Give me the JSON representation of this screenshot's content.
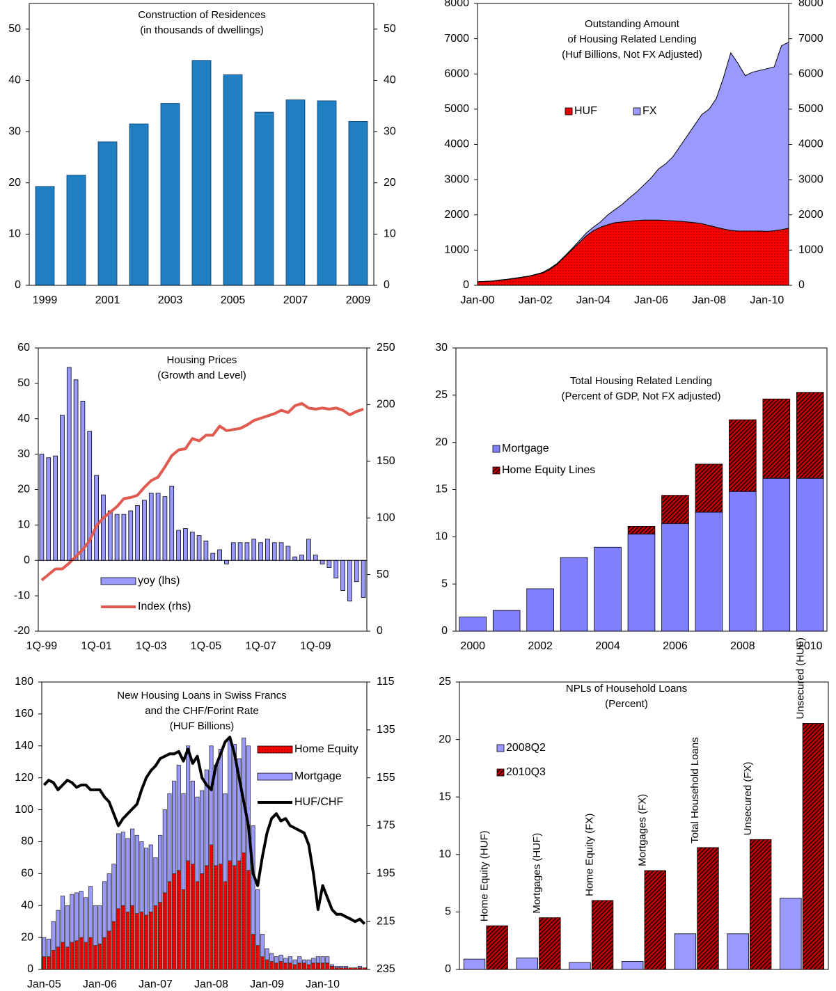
{
  "chart_data": [
    {
      "type": "bar",
      "title": [
        "Construction of Residences",
        "(in thousands of dwellings)"
      ],
      "categories": [
        "1999",
        null,
        "2001",
        null,
        "2003",
        null,
        "2005",
        null,
        "2007",
        null,
        "2009"
      ],
      "values": [
        19.3,
        21.5,
        28,
        31.5,
        35.5,
        43.9,
        41.1,
        33.8,
        36.2,
        36,
        32
      ],
      "color": "#1f7fc1",
      "ylim": [
        0,
        55
      ],
      "yticks": [
        0,
        10,
        20,
        30,
        40,
        50
      ],
      "y2lim": [
        0,
        55
      ],
      "y2ticks": [
        0,
        10,
        20,
        30,
        40,
        50
      ],
      "grid": false
    },
    {
      "type": "area",
      "title": [
        "Outstanding Amount",
        "of Housing Related Lending",
        "(Huf Billions, Not FX Adjusted)"
      ],
      "categories": [
        "Jan-00",
        null,
        null,
        null,
        null,
        null,
        null,
        null,
        "Jan-02",
        null,
        null,
        null,
        null,
        null,
        null,
        null,
        "Jan-04",
        null,
        null,
        null,
        null,
        null,
        null,
        null,
        "Jan-06",
        null,
        null,
        null,
        null,
        null,
        null,
        null,
        "Jan-08",
        null,
        null,
        null,
        null,
        null,
        null,
        null,
        "Jan-10",
        null,
        null,
        null
      ],
      "stacked": true,
      "series": [
        {
          "name": "HUF",
          "color": "#ff0000",
          "pattern": "dots",
          "values": [
            100,
            110,
            120,
            140,
            160,
            190,
            220,
            250,
            300,
            350,
            450,
            600,
            800,
            1000,
            1200,
            1400,
            1550,
            1650,
            1720,
            1780,
            1800,
            1820,
            1840,
            1850,
            1850,
            1850,
            1840,
            1830,
            1820,
            1800,
            1780,
            1750,
            1700,
            1650,
            1600,
            1560,
            1540,
            1540,
            1540,
            1540,
            1530,
            1550,
            1580,
            1620
          ]
        },
        {
          "name": "FX",
          "color": "#9999ff",
          "values": [
            0,
            0,
            5,
            10,
            10,
            10,
            10,
            10,
            10,
            20,
            30,
            20,
            20,
            30,
            50,
            80,
            100,
            150,
            280,
            370,
            500,
            660,
            810,
            1000,
            1200,
            1450,
            1610,
            1820,
            2130,
            2450,
            2770,
            3100,
            3300,
            3650,
            4300,
            5040,
            4760,
            4410,
            4510,
            4560,
            4620,
            4650,
            5220,
            5280
          ]
        }
      ],
      "ylim": [
        0,
        8000
      ],
      "yticks": [
        0,
        1000,
        2000,
        3000,
        4000,
        5000,
        6000,
        7000,
        8000
      ],
      "y2lim": [
        0,
        8000
      ],
      "y2ticks": [
        0,
        1000,
        2000,
        3000,
        4000,
        5000,
        6000,
        7000,
        8000
      ],
      "grid": false
    },
    {
      "type": "combo",
      "title": [
        "Housing Prices",
        "(Growth and Level)"
      ],
      "categories": [
        "1Q-99",
        null,
        null,
        null,
        null,
        null,
        null,
        null,
        "1Q-01",
        null,
        null,
        null,
        null,
        null,
        null,
        null,
        "1Q-03",
        null,
        null,
        null,
        null,
        null,
        null,
        null,
        "1Q-05",
        null,
        null,
        null,
        null,
        null,
        null,
        null,
        "1Q-07",
        null,
        null,
        null,
        null,
        null,
        null,
        null,
        "1Q-09",
        null,
        null,
        null,
        null,
        null,
        null,
        null
      ],
      "series": [
        {
          "name": "yoy (lhs)",
          "type": "bar",
          "color": "#9999ff",
          "values": [
            30,
            29,
            29.5,
            41,
            54.5,
            51,
            45,
            36.5,
            24,
            18.5,
            14,
            13,
            13,
            14,
            15.5,
            17,
            19,
            19,
            18,
            21,
            8.5,
            9,
            8,
            7,
            5.5,
            2,
            3,
            -1,
            5,
            5,
            5,
            6,
            5,
            6,
            5,
            5,
            4,
            1,
            1.5,
            6,
            1.5,
            -1,
            -2,
            -5,
            -8.5,
            -11.5,
            -6,
            -10.5
          ]
        },
        {
          "name": "Index (rhs)",
          "type": "line",
          "axis": "y2",
          "color": "#e05a4f",
          "values": [
            45,
            50,
            55,
            55,
            60,
            66,
            72,
            80,
            93,
            100,
            105,
            110,
            117,
            118,
            120,
            127,
            133,
            136,
            145,
            155,
            160,
            161,
            170,
            168,
            173,
            173,
            181,
            177,
            178,
            179,
            182,
            186,
            188,
            190,
            192,
            195,
            193,
            199,
            201,
            197,
            196,
            197,
            196,
            197,
            195,
            191,
            194,
            196
          ]
        }
      ],
      "ylim": [
        -20,
        60
      ],
      "yticks": [
        -20,
        -10,
        0,
        10,
        20,
        30,
        40,
        50,
        60
      ],
      "y2lim": [
        0,
        250
      ],
      "y2ticks": [
        0,
        50,
        100,
        150,
        200,
        250
      ],
      "grid": false
    },
    {
      "type": "bar",
      "title": [
        "Total Housing Related Lending",
        "(Percent of GDP, Not FX adjusted)"
      ],
      "categories": [
        "2000",
        null,
        "2002",
        null,
        "2004",
        null,
        "2006",
        null,
        "2008",
        null,
        "2010"
      ],
      "stacked": true,
      "series": [
        {
          "name": "Mortgage",
          "color": "#8080ff",
          "values": [
            1.5,
            2.2,
            4.5,
            7.8,
            8.9,
            10.3,
            11.4,
            12.6,
            14.8,
            16.2,
            16.2
          ]
        },
        {
          "name": "Home Equity Lines",
          "color": "#c00000",
          "pattern": "hatch",
          "values": [
            0,
            0,
            0,
            0,
            0,
            0.8,
            3.0,
            5.1,
            7.6,
            8.4,
            9.1
          ]
        }
      ],
      "ylim": [
        0,
        30
      ],
      "yticks": [
        0,
        5,
        10,
        15,
        20,
        25,
        30
      ],
      "grid": false
    },
    {
      "type": "combo",
      "title": [
        "New Housing Loans in Swiss Francs",
        "and the CHF/Forint Rate",
        "(HUF Billions)"
      ],
      "categories": [
        "Jan-05",
        null,
        null,
        null,
        null,
        null,
        null,
        null,
        null,
        null,
        null,
        null,
        "Jan-06",
        null,
        null,
        null,
        null,
        null,
        null,
        null,
        null,
        null,
        null,
        null,
        "Jan-07",
        null,
        null,
        null,
        null,
        null,
        null,
        null,
        null,
        null,
        null,
        null,
        "Jan-08",
        null,
        null,
        null,
        null,
        null,
        null,
        null,
        null,
        null,
        null,
        null,
        "Jan-09",
        null,
        null,
        null,
        null,
        null,
        null,
        null,
        null,
        null,
        null,
        null,
        "Jan-10",
        null,
        null,
        null,
        null,
        null,
        null,
        null,
        null,
        null
      ],
      "stacked": true,
      "series": [
        {
          "name": "Home Equity",
          "type": "bar",
          "color": "#ff0000",
          "pattern": "dots",
          "values": [
            8,
            8,
            12,
            14,
            17,
            14,
            17,
            18,
            20,
            17,
            20,
            15,
            16,
            20,
            24,
            30,
            38,
            40,
            36,
            40,
            35,
            36,
            34,
            36,
            40,
            42,
            48,
            55,
            60,
            62,
            50,
            68,
            66,
            55,
            60,
            65,
            78,
            65,
            66,
            55,
            68,
            65,
            68,
            73,
            62,
            22,
            15,
            8,
            6,
            5,
            4,
            5,
            4,
            4,
            3,
            4,
            4,
            3,
            4,
            4,
            4,
            4,
            2,
            1,
            1,
            1,
            1,
            1,
            1,
            1
          ]
        },
        {
          "name": "Mortgage",
          "type": "bar",
          "color": "#9999ff",
          "values": [
            12,
            11,
            18,
            23,
            29,
            26,
            30,
            30,
            29,
            28,
            32,
            25,
            24,
            35,
            36,
            36,
            47,
            46,
            46,
            48,
            49,
            44,
            42,
            42,
            30,
            42,
            52,
            55,
            58,
            66,
            60,
            72,
            52,
            53,
            52,
            60,
            62,
            63,
            72,
            55,
            76,
            76,
            64,
            72,
            78,
            68,
            35,
            14,
            7,
            5,
            4,
            4,
            3,
            4,
            3,
            4,
            2,
            3,
            3,
            4,
            4,
            4,
            1,
            1,
            1,
            1,
            0,
            0,
            1,
            0
          ]
        },
        {
          "name": "HUF/CHF",
          "type": "line",
          "axis": "y2",
          "color": "#000000",
          "values": [
            158,
            156,
            157,
            160,
            158,
            156,
            157,
            159,
            158,
            158,
            160,
            160,
            160,
            163,
            165,
            170,
            175,
            172,
            170,
            168,
            166,
            160,
            155,
            152,
            150,
            147,
            146,
            145,
            145,
            144,
            148,
            143,
            149,
            146,
            155,
            158,
            160,
            150,
            145,
            140,
            138,
            145,
            155,
            165,
            175,
            195,
            200,
            188,
            178,
            172,
            170,
            173,
            172,
            175,
            176,
            177,
            178,
            183,
            195,
            210,
            200,
            205,
            210,
            212,
            212,
            213,
            214,
            215,
            214,
            216
          ]
        }
      ],
      "ylim": [
        0,
        180
      ],
      "yticks": [
        0,
        20,
        40,
        60,
        80,
        100,
        120,
        140,
        160,
        180
      ],
      "y2lim": [
        235,
        115
      ],
      "y2ticks": [
        115,
        135,
        155,
        175,
        195,
        215,
        235
      ],
      "grid": false
    },
    {
      "type": "bar",
      "title": [
        "NPLs of Household Loans",
        "(Percent)"
      ],
      "categories": [
        "Home Equity (HUF)",
        "Mortgages (HUF)",
        "Home Equity (FX)",
        "Mortgages (FX)",
        "Total Household Loans",
        "Unsecured (FX)",
        "Unsecured (HUF)"
      ],
      "series": [
        {
          "name": "2008Q2",
          "color": "#9999ff",
          "values": [
            0.9,
            1.0,
            0.6,
            0.7,
            3.1,
            3.1,
            6.2
          ]
        },
        {
          "name": "2010Q3",
          "color": "#c00000",
          "pattern": "hatch",
          "values": [
            3.8,
            4.5,
            6.0,
            8.6,
            10.6,
            11.3,
            21.4
          ]
        }
      ],
      "ylim": [
        0,
        25
      ],
      "yticks": [
        0,
        5,
        10,
        15,
        20,
        25
      ],
      "grid": false
    }
  ]
}
